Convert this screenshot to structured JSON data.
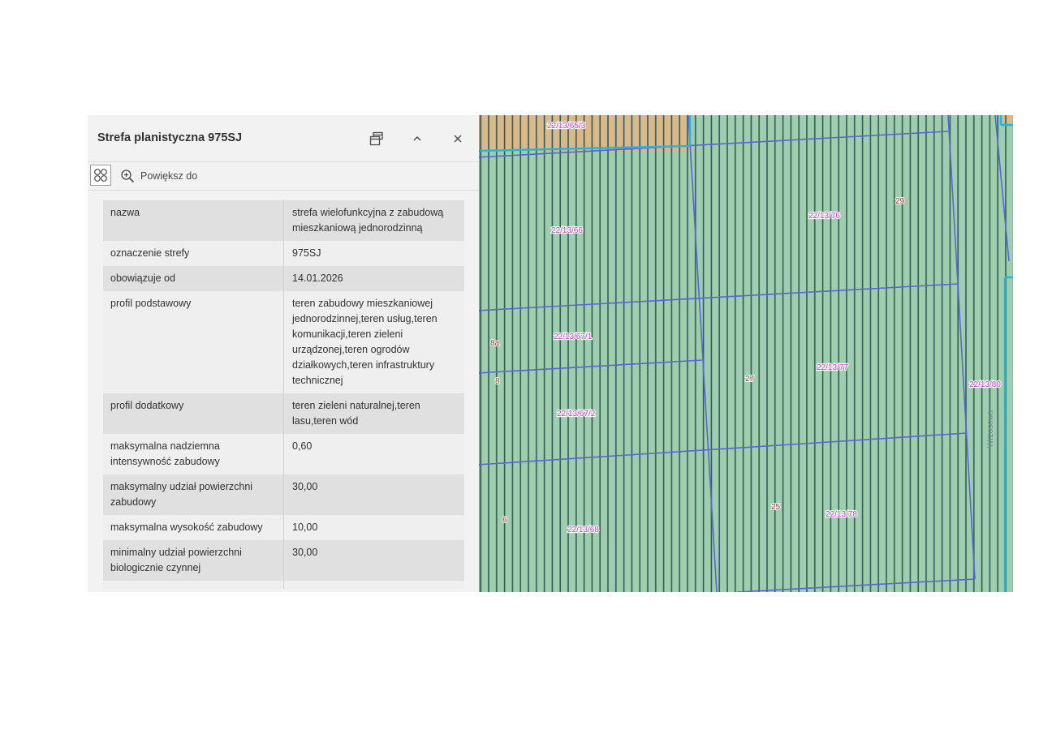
{
  "panel": {
    "title": "Strefa planistyczna 975SJ",
    "header_icons": [
      "dock-icon",
      "chevron-up-icon",
      "close-icon"
    ],
    "toolbar": {
      "options_icon": "four-circles-icon",
      "zoom_icon": "zoom-in-icon",
      "zoom_label": "Powiększ do"
    },
    "attributes": [
      {
        "key": "nazwa",
        "value": "strefa wielofunkcyjna z zabudową mieszkaniową jednorodzinną"
      },
      {
        "key": "oznaczenie strefy",
        "value": "975SJ"
      },
      {
        "key": "obowiązuje od",
        "value": "14.01.2026"
      },
      {
        "key": "profil podstawowy",
        "value": "teren zabudowy mieszkaniowej jednorodzinnej,teren usług,teren komunikacji,teren zieleni urządzonej,teren ogrodów działkowych,teren infrastruktury technicznej"
      },
      {
        "key": "profil dodatkowy",
        "value": "teren zieleni naturalnej,teren lasu,teren wód"
      },
      {
        "key": "maksymalna nadziemna intensywność zabudowy",
        "value": "0,60"
      },
      {
        "key": "maksymalny udział powierzchni zabudowy",
        "value": "30,00"
      },
      {
        "key": "maksymalna wysokość zabudowy",
        "value": "10,00"
      },
      {
        "key": "minimalny udział powierzchni biologicznie czynnej",
        "value": "30,00"
      }
    ]
  },
  "map": {
    "colors": {
      "zone_fill": "#9fceae",
      "hatch": "#2f5b58",
      "other_zone": "#d9b98a",
      "parcel_line": "#5c64d6",
      "zone_border": "#23b5e0",
      "parcel_label": "#c03cc4",
      "number_label": "#8a3a2a"
    },
    "parcel_labels": [
      "22/13/65/3",
      "22/13/66",
      "22/13/76",
      "22/13/67/1",
      "22/13/77",
      "22/13/80",
      "22/13/67/2",
      "22/13/68",
      "22/13/78"
    ],
    "number_labels": [
      "29",
      "8a",
      "8",
      "27",
      "6",
      "25"
    ],
    "street_label": "Wrzosowa"
  }
}
